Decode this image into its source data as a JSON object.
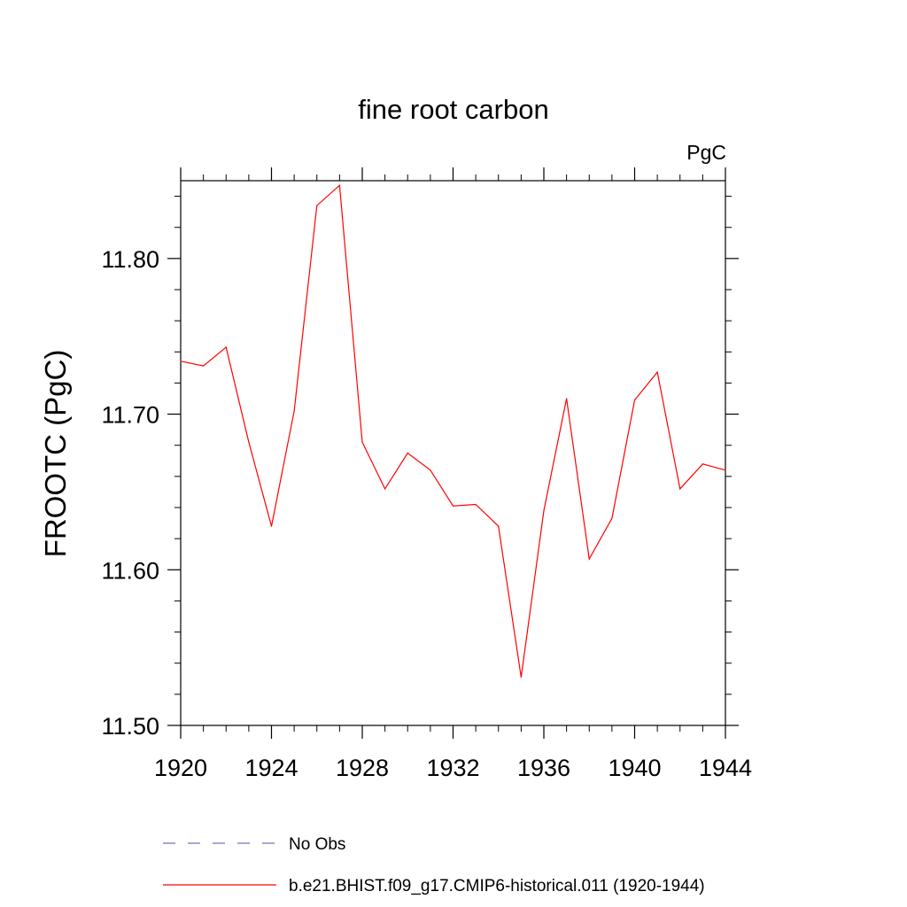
{
  "chart_data": {
    "type": "line",
    "title": "fine root carbon",
    "units_label": "PgC",
    "ylabel": "FROOTC  (PgC)",
    "xlabel": "",
    "xlim": [
      1920,
      1944
    ],
    "ylim": [
      11.5,
      11.85
    ],
    "x_ticks": [
      1920,
      1924,
      1928,
      1932,
      1936,
      1940,
      1944
    ],
    "y_ticks": [
      11.5,
      11.6,
      11.7,
      11.8
    ],
    "y_tick_labels": [
      "11.50",
      "11.60",
      "11.70",
      "11.80"
    ],
    "grid": false,
    "legend_position": "bottom",
    "series": [
      {
        "name": "b.e21.BHIST.f09_g17.CMIP6-historical.011 (1920-1944)",
        "color": "#ff0000",
        "dash": "solid",
        "x": [
          1920,
          1921,
          1922,
          1923,
          1924,
          1925,
          1926,
          1927,
          1928,
          1929,
          1930,
          1931,
          1932,
          1933,
          1934,
          1935,
          1936,
          1937,
          1938,
          1939,
          1940,
          1941,
          1942,
          1943,
          1944
        ],
        "values": [
          11.734,
          11.731,
          11.743,
          11.682,
          11.628,
          11.702,
          11.834,
          11.847,
          11.682,
          11.652,
          11.675,
          11.664,
          11.641,
          11.642,
          11.628,
          11.531,
          11.638,
          11.71,
          11.607,
          11.633,
          11.709,
          11.727,
          11.652,
          11.668,
          11.664
        ]
      }
    ],
    "legend": [
      {
        "label": "No Obs",
        "color": "#7b6fb8",
        "dash": "dashed"
      },
      {
        "label": "b.e21.BHIST.f09_g17.CMIP6-historical.011 (1920-1944)",
        "color": "#ff0000",
        "dash": "solid"
      }
    ]
  }
}
